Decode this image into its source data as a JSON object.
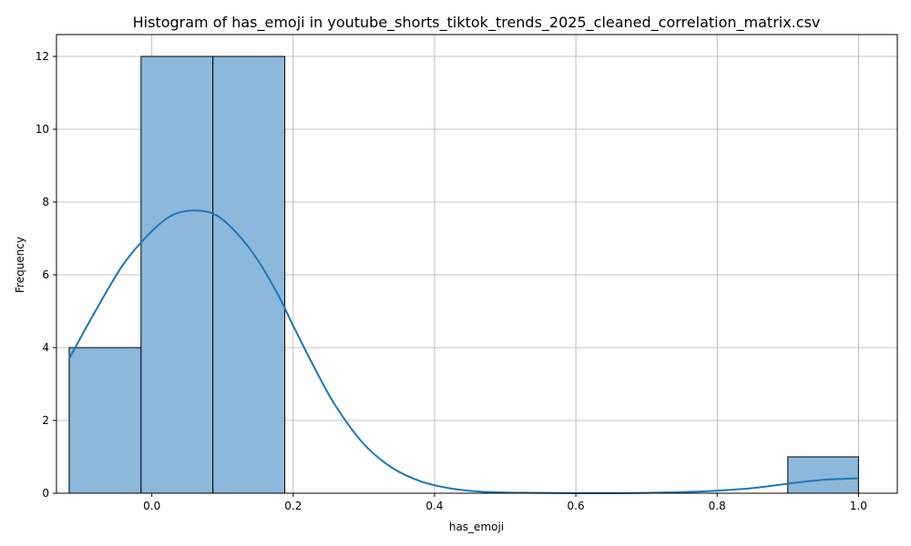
{
  "chart_data": {
    "type": "bar",
    "title": "Histogram of has_emoji in youtube_shorts_tiktok_trends_2025_cleaned_correlation_matrix.csv",
    "xlabel": "has_emoji",
    "ylabel": "Frequency",
    "xlim": [
      -0.135,
      1.055
    ],
    "ylim": [
      0,
      12.6
    ],
    "xticks": [
      0.0,
      0.2,
      0.4,
      0.6,
      0.8,
      1.0
    ],
    "xtick_labels": [
      "0.0",
      "0.2",
      "0.4",
      "0.6",
      "0.8",
      "1.0"
    ],
    "yticks": [
      0,
      2,
      4,
      6,
      8,
      10,
      12
    ],
    "ytick_labels": [
      "0",
      "2",
      "4",
      "6",
      "8",
      "10",
      "12"
    ],
    "bins": [
      {
        "x0": -0.117,
        "x1": -0.0153,
        "count": 4
      },
      {
        "x0": -0.0153,
        "x1": 0.0864,
        "count": 12
      },
      {
        "x0": 0.0864,
        "x1": 0.1881,
        "count": 12
      },
      {
        "x0": 0.1881,
        "x1": 0.2898,
        "count": 0
      },
      {
        "x0": 0.2898,
        "x1": 0.3915,
        "count": 0
      },
      {
        "x0": 0.3915,
        "x1": 0.4932,
        "count": 0
      },
      {
        "x0": 0.4932,
        "x1": 0.5949,
        "count": 0
      },
      {
        "x0": 0.5949,
        "x1": 0.6966,
        "count": 0
      },
      {
        "x0": 0.6966,
        "x1": 0.7983,
        "count": 0
      },
      {
        "x0": 0.7983,
        "x1": 0.9,
        "count": 0
      },
      {
        "x0": 0.9,
        "x1": 1.0,
        "count": 1
      }
    ],
    "kde": {
      "x": [
        -0.117,
        -0.08,
        -0.04,
        0.0,
        0.03,
        0.06,
        0.09,
        0.12,
        0.15,
        0.18,
        0.2,
        0.23,
        0.26,
        0.3,
        0.34,
        0.38,
        0.42,
        0.46,
        0.5,
        0.55,
        0.6,
        0.65,
        0.7,
        0.75,
        0.8,
        0.85,
        0.9,
        0.95,
        1.0
      ],
      "y": [
        3.7,
        5.0,
        6.3,
        7.2,
        7.65,
        7.77,
        7.65,
        7.15,
        6.4,
        5.4,
        4.6,
        3.45,
        2.4,
        1.35,
        0.7,
        0.33,
        0.14,
        0.05,
        0.02,
        0.01,
        0.0,
        0.0,
        0.01,
        0.03,
        0.07,
        0.14,
        0.26,
        0.37,
        0.41
      ]
    },
    "grid": true,
    "colors": {
      "bar_fill": "#8cb8db",
      "bar_edge": "#000000",
      "kde_line": "#1f77b4"
    }
  }
}
